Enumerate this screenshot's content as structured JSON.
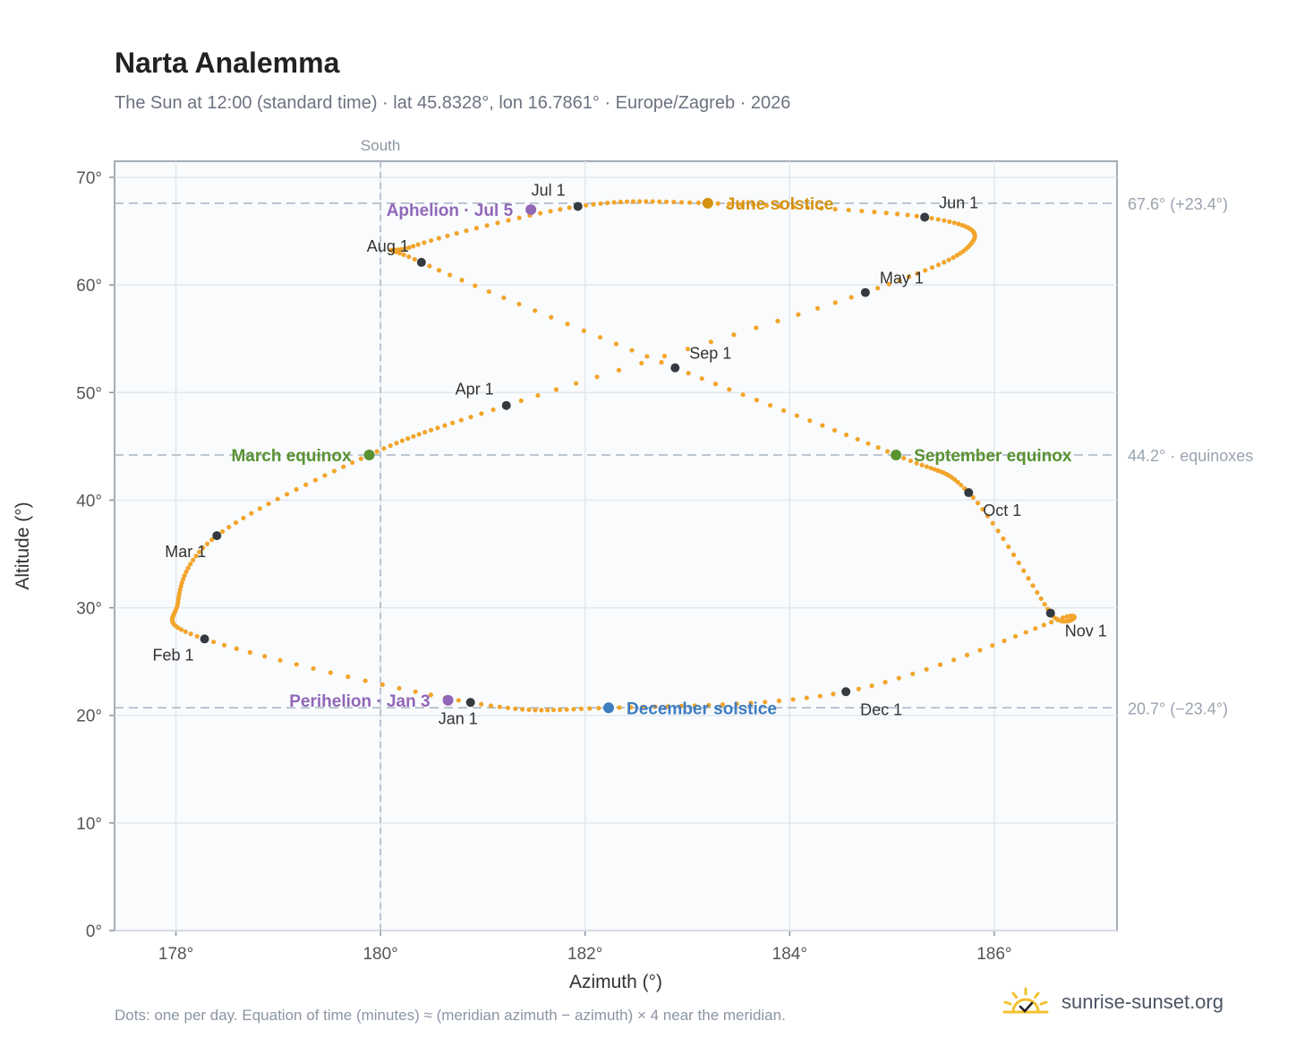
{
  "header": {
    "title": "Narta Analemma",
    "subtitle": "The Sun at 12:00 (standard time) · lat 45.8328°, lon 16.7861° · Europe/Zagreb · 2026"
  },
  "footer": {
    "note": "Dots: one per day. Equation of time (minutes) ≈ (meridian azimuth − azimuth) × 4 near the meridian.",
    "brand": "sunrise-sunset.org"
  },
  "colors": {
    "curve": "#f2a52b",
    "month_dot": "#343a40",
    "solstice_june": "#d4920f",
    "solstice_december": "#3d7cc0",
    "equinox": "#5a9232",
    "apsis": "#9167b8",
    "reference": "#9aa3ae"
  },
  "chart_data": {
    "type": "scatter",
    "xlabel": "Azimuth (°)",
    "ylabel": "Altitude (°)",
    "xlim": [
      177.4,
      187.2
    ],
    "ylim": [
      0,
      71.5
    ],
    "xticks": [
      178,
      180,
      182,
      184,
      186
    ],
    "xtick_labels": [
      "178°",
      "180°",
      "182°",
      "184°",
      "186°"
    ],
    "yticks": [
      0,
      10,
      20,
      30,
      40,
      50,
      60,
      70
    ],
    "ytick_labels": [
      "0°",
      "10°",
      "20°",
      "30°",
      "40°",
      "50°",
      "60°",
      "70°"
    ],
    "grid": true,
    "meridian": {
      "x": 180,
      "label": "South"
    },
    "reference_lines": [
      {
        "y": 67.6,
        "label": "67.6° (+23.4°)"
      },
      {
        "y": 44.2,
        "label": "44.2° · equinoxes"
      },
      {
        "y": 20.7,
        "label": "20.7° (−23.4°)"
      }
    ],
    "daily_path": {
      "description": "",
      "keypoints": [
        {
          "date": "Jan 1",
          "x": 180.88,
          "y": 21.2
        },
        {
          "date": "Feb 1",
          "x": 178.28,
          "y": 27.1
        },
        {
          "date": "Feb 12",
          "x": 178.02,
          "y": 30.5
        },
        {
          "date": "Mar 1",
          "x": 178.4,
          "y": 36.7
        },
        {
          "date": "Mar 20",
          "x": 179.89,
          "y": 44.2
        },
        {
          "date": "Apr 1",
          "x": 181.23,
          "y": 48.8
        },
        {
          "date": "May 1",
          "x": 184.74,
          "y": 59.3
        },
        {
          "date": "May 14",
          "x": 185.78,
          "y": 63.9
        },
        {
          "date": "Jun 1",
          "x": 185.32,
          "y": 66.3
        },
        {
          "date": "Jun 21",
          "x": 183.2,
          "y": 67.6
        },
        {
          "date": "Jul 1",
          "x": 181.93,
          "y": 67.3
        },
        {
          "date": "Jul 26",
          "x": 180.32,
          "y": 63.6
        },
        {
          "date": "Aug 1",
          "x": 180.4,
          "y": 62.1
        },
        {
          "date": "Sep 1",
          "x": 182.88,
          "y": 52.3
        },
        {
          "date": "Sep 23",
          "x": 185.04,
          "y": 44.2
        },
        {
          "date": "Oct 1",
          "x": 185.75,
          "y": 40.7
        },
        {
          "date": "Nov 3",
          "x": 186.62,
          "y": 28.9
        },
        {
          "date": "Nov 1",
          "x": 186.55,
          "y": 29.5
        },
        {
          "date": "Dec 1",
          "x": 184.55,
          "y": 22.2
        },
        {
          "date": "Dec 21",
          "x": 182.23,
          "y": 20.7
        }
      ]
    },
    "month_markers": [
      {
        "label": "Jan 1",
        "x": 180.88,
        "y": 21.2,
        "label_pos": "below"
      },
      {
        "label": "Feb 1",
        "x": 178.28,
        "y": 27.1,
        "label_pos": "below-left"
      },
      {
        "label": "Mar 1",
        "x": 178.4,
        "y": 36.7,
        "label_pos": "below-left"
      },
      {
        "label": "Apr 1",
        "x": 181.23,
        "y": 48.8,
        "label_pos": "above-left"
      },
      {
        "label": "May 1",
        "x": 184.74,
        "y": 59.3,
        "label_pos": "above-right"
      },
      {
        "label": "Jun 1",
        "x": 185.32,
        "y": 66.3,
        "label_pos": "above-right"
      },
      {
        "label": "Jul 1",
        "x": 181.93,
        "y": 67.3,
        "label_pos": "above-left"
      },
      {
        "label": "Aug 1",
        "x": 180.4,
        "y": 62.1,
        "label_pos": "above-left"
      },
      {
        "label": "Sep 1",
        "x": 182.88,
        "y": 52.3,
        "label_pos": "above-right"
      },
      {
        "label": "Oct 1",
        "x": 185.75,
        "y": 40.7,
        "label_pos": "below-right"
      },
      {
        "label": "Nov 1",
        "x": 186.55,
        "y": 29.5,
        "label_pos": "below-right"
      },
      {
        "label": "Dec 1",
        "x": 184.55,
        "y": 22.2,
        "label_pos": "below-right"
      }
    ],
    "events": [
      {
        "label": "June solstice",
        "x": 183.2,
        "y": 67.6,
        "color": "#d4920f",
        "label_pos": "right"
      },
      {
        "label": "December solstice",
        "x": 182.23,
        "y": 20.7,
        "color": "#3d7cc0",
        "label_pos": "right"
      },
      {
        "label": "March equinox",
        "x": 179.89,
        "y": 44.2,
        "color": "#5a9232",
        "label_pos": "left"
      },
      {
        "label": "September equinox",
        "x": 185.04,
        "y": 44.2,
        "color": "#5a9232",
        "label_pos": "right"
      },
      {
        "label": "Aphelion · Jul 5",
        "x": 181.47,
        "y": 67.0,
        "color": "#9167b8",
        "label_pos": "left"
      },
      {
        "label": "Perihelion · Jan 3",
        "x": 180.66,
        "y": 21.4,
        "color": "#9167b8",
        "label_pos": "left"
      }
    ]
  }
}
